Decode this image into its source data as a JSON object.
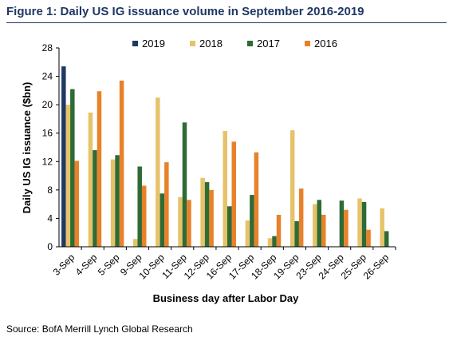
{
  "figure": {
    "title": "Figure 1: Daily US IG issuance volume in September 2016-2019",
    "source": "Source: BofA Merrill Lynch Global Research"
  },
  "chart_data": {
    "type": "bar",
    "title": "",
    "xlabel": "Business day after Labor Day",
    "ylabel": "Daily US IG issuance ($bn)",
    "ylim": [
      0,
      28
    ],
    "yticks": [
      0,
      4,
      8,
      12,
      16,
      20,
      24,
      28
    ],
    "grid": false,
    "legend_position": "top",
    "categories": [
      "3-Sep",
      "4-Sep",
      "5-Sep",
      "9-Sep",
      "10-Sep",
      "11-Sep",
      "12-Sep",
      "16-Sep",
      "17-Sep",
      "18-Sep",
      "19-Sep",
      "23-Sep",
      "24-Sep",
      "25-Sep",
      "26-Sep"
    ],
    "series": [
      {
        "name": "2019",
        "color": "#1f3864",
        "values": [
          25.4,
          0,
          0,
          0,
          0,
          0,
          0,
          0,
          0,
          0,
          0,
          0,
          0,
          0,
          0
        ]
      },
      {
        "name": "2018",
        "color": "#e6c36a",
        "values": [
          20.0,
          18.9,
          12.3,
          1.1,
          21.0,
          7.0,
          9.7,
          16.3,
          3.7,
          1.2,
          16.4,
          6.0,
          0,
          6.8,
          5.4
        ]
      },
      {
        "name": "2017",
        "color": "#2e6b35",
        "values": [
          22.2,
          13.6,
          12.9,
          11.3,
          7.5,
          17.5,
          9.1,
          5.7,
          7.3,
          1.5,
          3.6,
          6.6,
          6.5,
          6.3,
          2.2
        ]
      },
      {
        "name": "2016",
        "color": "#e8822a",
        "values": [
          12.1,
          21.9,
          23.4,
          8.6,
          11.9,
          6.6,
          8.0,
          14.8,
          13.3,
          4.5,
          8.2,
          4.5,
          5.2,
          2.4,
          0
        ]
      }
    ]
  }
}
